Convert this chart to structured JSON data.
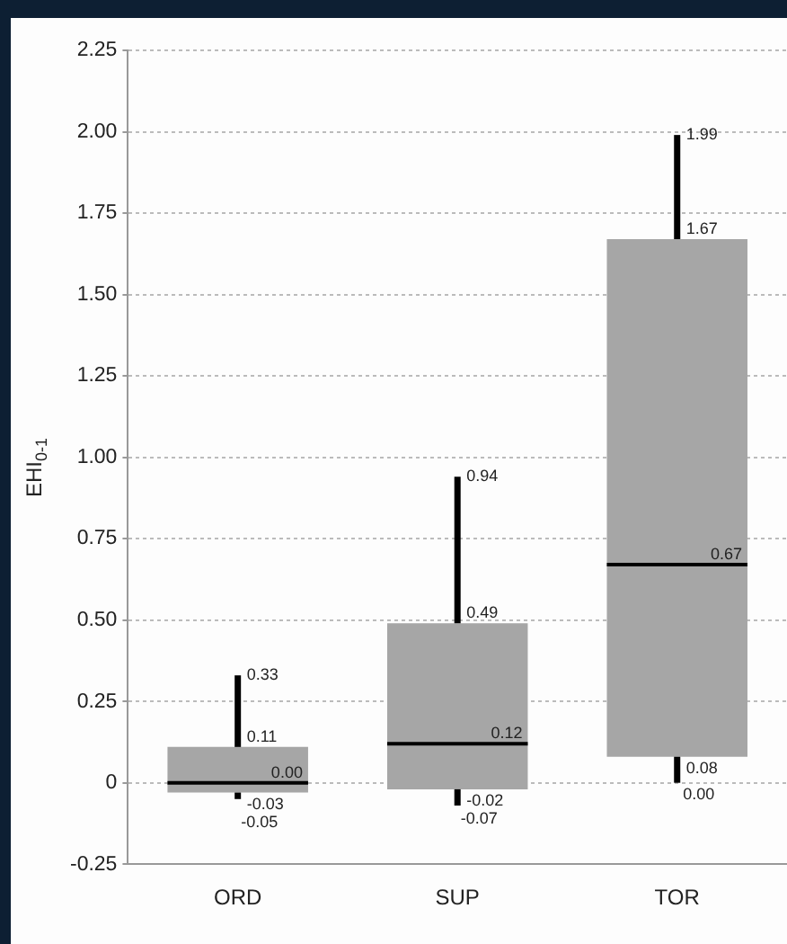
{
  "chart_data": {
    "type": "box",
    "ylabel": "EHI$_{0-1}$",
    "categories": [
      "ORD",
      "SUP",
      "TOR"
    ],
    "boxes": [
      {
        "low": -0.05,
        "q1": -0.03,
        "median": 0.0,
        "q3": 0.11,
        "high": 0.33
      },
      {
        "low": -0.07,
        "q1": -0.02,
        "median": 0.12,
        "q3": 0.49,
        "high": 0.94
      },
      {
        "low": 0.0,
        "q1": 0.08,
        "median": 0.67,
        "q3": 1.67,
        "high": 1.99
      }
    ],
    "color": "#a6a6a6",
    "ylim": [
      -0.25,
      2.25
    ],
    "yticks": [
      -0.25,
      {
        "value": 0,
        "label": "0"
      },
      0.25,
      {
        "value": 0.5,
        "label": "0.50"
      },
      0.75,
      {
        "value": 1,
        "label": "1.00"
      },
      1.25,
      {
        "value": 1.5,
        "label": "1.50"
      },
      1.75,
      {
        "value": 2,
        "label": "2.00"
      },
      2.25
    ],
    "annotations": [
      {
        "text": "0.33",
        "x": "ORD",
        "y": 0.33
      },
      {
        "text": "0.11",
        "x": "ORD",
        "y": 0.11
      },
      {
        "text": "0.00",
        "x": "ORD",
        "y": 0.0
      },
      {
        "text": "-0.03",
        "x": "ORD",
        "y": -0.03
      },
      {
        "text": "-0.05",
        "x": "ORD",
        "y": -0.05
      },
      {
        "text": "0.94",
        "x": "SUP",
        "y": 0.94
      },
      {
        "text": "0.49",
        "x": "SUP",
        "y": 0.49
      },
      {
        "text": "0.12",
        "x": "SUP",
        "y": 0.12
      },
      {
        "text": "-0.02",
        "x": "SUP",
        "y": -0.02
      },
      {
        "text": "-0.07",
        "x": "SUP",
        "y": -0.07
      },
      {
        "text": "1.99",
        "x": "TOR",
        "y": 1.99
      },
      {
        "text": "1.67",
        "x": "TOR",
        "y": 1.67
      },
      {
        "text": "0.67",
        "x": "TOR",
        "y": 0.67
      },
      {
        "text": "0.08",
        "x": "TOR",
        "y": 0.08
      },
      {
        "text": "0.00",
        "x": "TOR",
        "y": 0.0
      }
    ],
    "grid": "y",
    "legend": false
  }
}
